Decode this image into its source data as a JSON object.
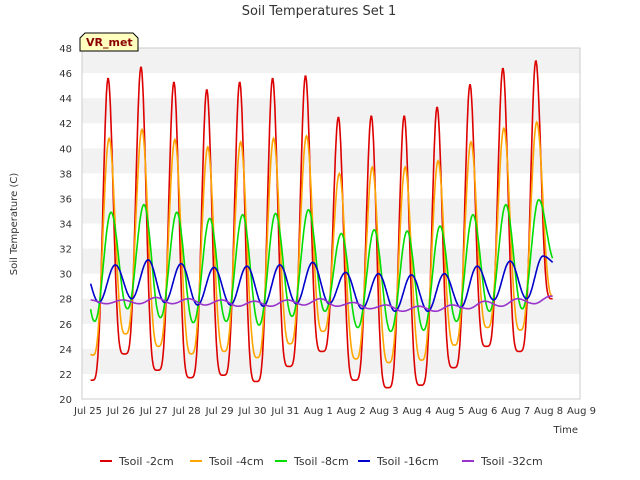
{
  "chart_data": {
    "type": "line",
    "title": "Soil Temperatures Set 1",
    "xlabel": "Time",
    "ylabel": "Soil Temperature (C)",
    "ylim": [
      20,
      48
    ],
    "yticks": [
      20,
      22,
      24,
      26,
      28,
      30,
      32,
      34,
      36,
      38,
      40,
      42,
      44,
      46,
      48
    ],
    "xlim": [
      0,
      15
    ],
    "xtick_labels": [
      "Jul 25",
      "Jul 26",
      "Jul 27",
      "Jul 28",
      "Jul 29",
      "Jul 30",
      "Jul 31",
      "Aug 1",
      "Aug 2",
      "Aug 3",
      "Aug 4",
      "Aug 5",
      "Aug 6",
      "Aug 7",
      "Aug 8",
      "Aug 9"
    ],
    "grid": "horizontal bands",
    "legend_position": "bottom",
    "badge": "VR_met",
    "peak_phase": 0.58,
    "series": [
      {
        "name": "Tsoil -2cm",
        "color": "#dd0000",
        "lag": 0.0,
        "sharp": 2.2,
        "max": [
          45.6,
          46.5,
          45.3,
          44.7,
          45.3,
          45.6,
          45.8,
          42.5,
          42.6,
          42.6,
          43.3,
          45.1,
          46.4,
          47.0
        ],
        "min": [
          21.5,
          23.6,
          22.3,
          21.7,
          21.9,
          21.4,
          22.6,
          23.8,
          21.5,
          20.9,
          21.1,
          22.5,
          24.2,
          23.8,
          28.0
        ]
      },
      {
        "name": "Tsoil -4cm",
        "color": "#ffa500",
        "lag": 0.03,
        "sharp": 1.6,
        "max": [
          40.8,
          41.5,
          40.7,
          40.1,
          40.5,
          40.8,
          41.0,
          38.0,
          38.5,
          38.5,
          39.0,
          40.5,
          41.6,
          42.1
        ],
        "min": [
          23.5,
          25.2,
          24.2,
          23.6,
          23.8,
          23.3,
          24.4,
          25.4,
          23.2,
          22.9,
          23.1,
          24.3,
          25.7,
          25.5,
          28.2
        ]
      },
      {
        "name": "Tsoil -8cm",
        "color": "#00dd00",
        "lag": 0.09,
        "sharp": 1.1,
        "max": [
          34.9,
          35.5,
          34.9,
          34.4,
          34.7,
          34.8,
          35.1,
          33.2,
          33.5,
          33.4,
          33.8,
          34.7,
          35.5,
          35.9
        ],
        "min": [
          26.2,
          27.2,
          26.5,
          26.1,
          26.2,
          25.9,
          26.6,
          27.0,
          25.7,
          25.4,
          25.5,
          26.2,
          27.0,
          27.2,
          31.0
        ]
      },
      {
        "name": "Tsoil -16cm",
        "color": "#0000cc",
        "lag": 0.22,
        "sharp": 1.0,
        "max": [
          30.7,
          31.1,
          30.8,
          30.5,
          30.6,
          30.7,
          30.9,
          30.1,
          30.0,
          29.9,
          30.0,
          30.6,
          31.0,
          31.4
        ],
        "min": [
          27.7,
          28.0,
          27.7,
          27.5,
          27.5,
          27.4,
          27.6,
          27.6,
          27.2,
          27.0,
          27.0,
          27.3,
          27.9,
          28.0,
          30.6
        ]
      },
      {
        "name": "Tsoil -32cm",
        "color": "#9933cc",
        "lag": 0.45,
        "sharp": 1.0,
        "max": [
          27.9,
          28.1,
          28.0,
          27.9,
          27.8,
          27.9,
          28.0,
          27.7,
          27.5,
          27.4,
          27.5,
          27.8,
          28.0,
          28.2
        ],
        "min": [
          27.6,
          27.6,
          27.6,
          27.5,
          27.4,
          27.4,
          27.5,
          27.4,
          27.2,
          27.0,
          27.0,
          27.2,
          27.4,
          27.6,
          28.2
        ]
      }
    ]
  }
}
